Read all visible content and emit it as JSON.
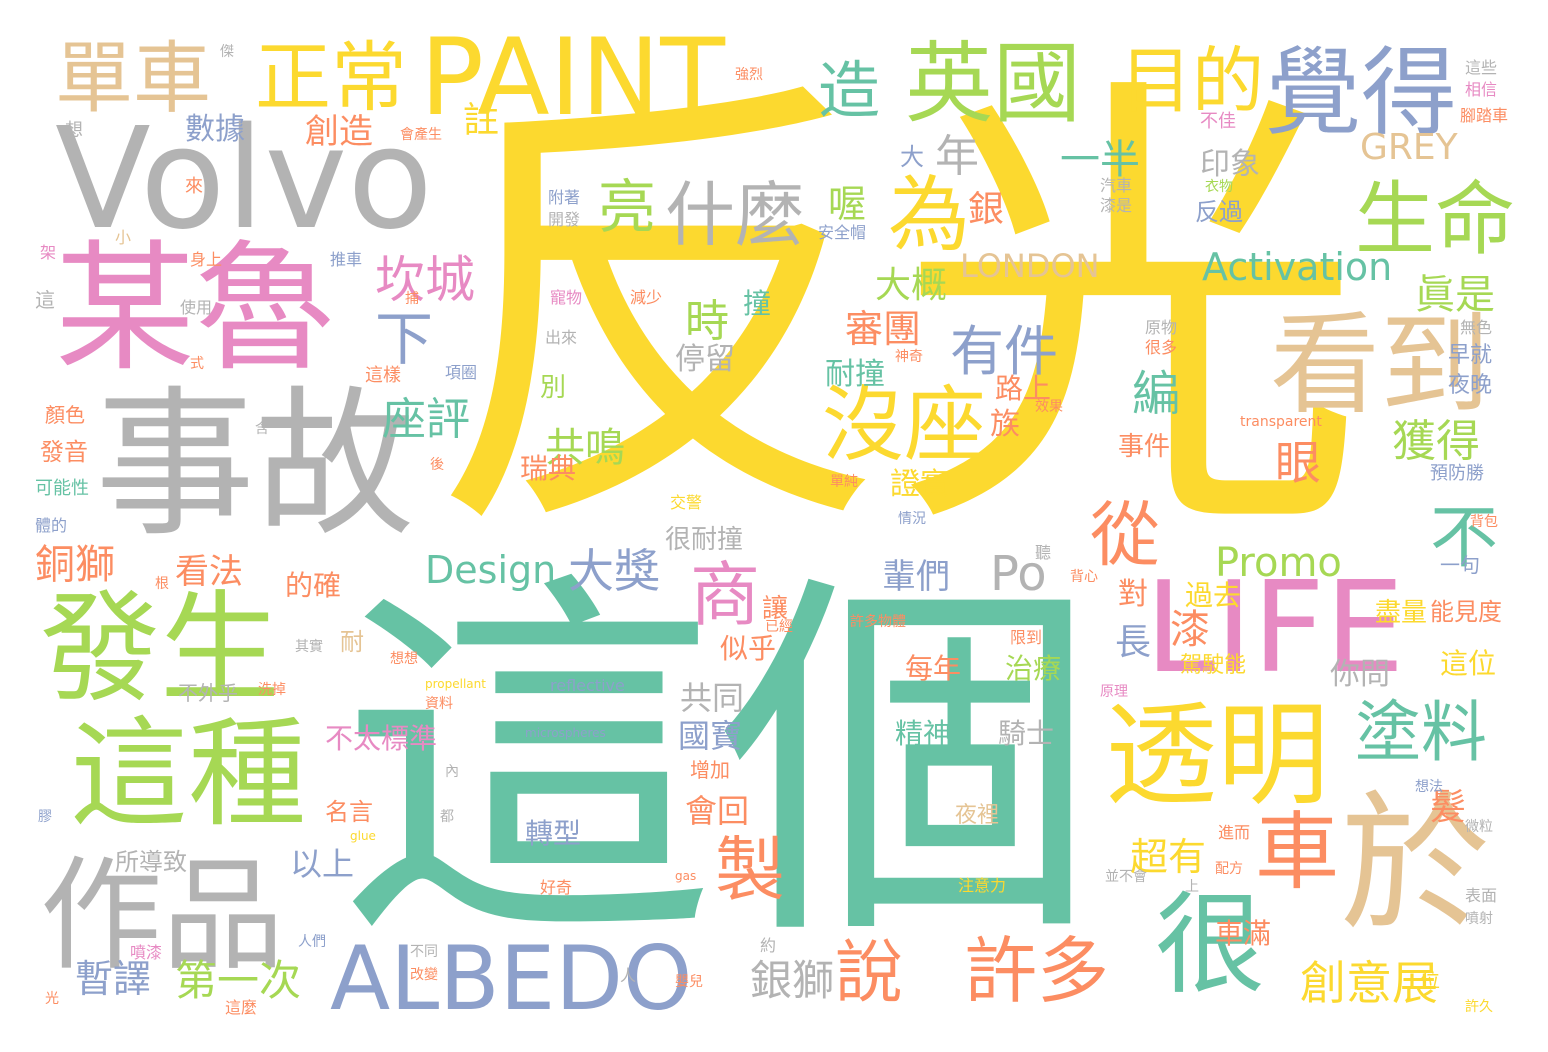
{
  "colors": {
    "yellow": "#fcd92f",
    "teal": "#66c2a4",
    "green": "#a6d854",
    "pink": "#e78ac3",
    "gray": "#b3b3b3",
    "tan": "#e5c494",
    "orange": "#fc8d62",
    "blue": "#8da0cb"
  },
  "words": {
    "w1": "反光",
    "w2": "這個",
    "w3": "Volvo",
    "w4": "某魯",
    "w5": "事故",
    "w6": "PAINT",
    "w7": "發生",
    "w8": "這種",
    "w9": "作品",
    "w10": "ALBEDO",
    "w11": "LIFE",
    "w12": "於",
    "w13": "透明",
    "w14": "看到",
    "w15": "覺得",
    "w16": "英國",
    "w17": "單車",
    "w18": "正常",
    "w19": "目的",
    "w20": "造",
    "w21": "生命",
    "w22": "什麼",
    "w23": "為",
    "w24": "沒座",
    "w25": "很",
    "w26": "許多",
    "w27": "車",
    "w28": "塗料",
    "w29": "從",
    "w30": "不",
    "w31": "商",
    "w32": "製",
    "w33": "說",
    "w34": "坎城",
    "w35": "下",
    "w36": "亮",
    "w37": "有件",
    "w38": "Activation",
    "w39": "Promo",
    "w40": "Design",
    "w41": "大獎",
    "w42": "創意展",
    "w43": "第一次",
    "w44": "暫譯",
    "w45": "銀獅",
    "w46": "LONDON",
    "w47": "GREY",
    "w48": "一半",
    "w49": "年",
    "w50": "大",
    "w51": "數據",
    "w52": "創造",
    "w53": "註",
    "w54": "座評",
    "w55": "共鳴",
    "w56": "大概",
    "w57": "審團",
    "w58": "時",
    "w59": "撞",
    "w60": "耐撞",
    "w61": "編",
    "w62": "眞是",
    "w63": "獲得",
    "w64": "眼",
    "w65": "喔",
    "w66": "銀",
    "w67": "印象",
    "w68": "反過",
    "w69": "Po",
    "w70": "銅獅",
    "w71": "看法",
    "w72": "瑞典",
    "w73": "很耐撞",
    "w74": "輩們",
    "w75": "別",
    "w76": "停留",
    "w77": "路上",
    "w78": "族",
    "w79": "證實",
    "w80": "事件",
    "w81": "的確",
    "w82": "過去",
    "w83": "漆",
    "w84": "長",
    "w85": "對",
    "w86": "似乎",
    "w87": "每年",
    "w88": "治療",
    "w89": "共同",
    "w90": "精神",
    "w91": "騎士",
    "w92": "國寶",
    "w93": "會回",
    "w94": "以上",
    "w95": "轉型",
    "w96": "超有",
    "w97": "車滿",
    "w98": "不太標準",
    "w99": "名言",
    "w100": "所導致",
    "w101": "你問",
    "w102": "這位",
    "w103": "能見度",
    "w104": "盡量",
    "w105": "髮",
    "w106": "一句",
    "w107": "駕駛能",
    "w108": "夜裡",
    "w109": "讓",
    "w110": "不外乎",
    "w111": "增加",
    "w112": "發音",
    "w113": "可能性",
    "w114": "顏色",
    "w115": "早就",
    "w116": "夜晚",
    "w117": "無色",
    "w118": "這些",
    "w119": "相信",
    "w120": "腳踏車",
    "w121": "不佳",
    "w122": "汽車",
    "w123": "漆是",
    "w124": "衣物",
    "w125": "安全帽",
    "w126": "附著",
    "w127": "開發",
    "w128": "身上",
    "w129": "推車",
    "w130": "使用",
    "w131": "減少",
    "w132": "出來",
    "w133": "寵物",
    "w134": "原物",
    "w135": "很多",
    "w136": "神奇",
    "w137": "項圈",
    "w138": "這樣",
    "w139": "效果",
    "w140": "transparent",
    "w141": "預防勝",
    "w142": "背包",
    "w143": "背心",
    "w144": "許多物體",
    "w145": "單純",
    "w146": "情況",
    "w147": "交警",
    "w148": "已經",
    "w149": "限到",
    "w150": "reflective",
    "w151": "microspheres",
    "w152": "propellant",
    "w153": "資料",
    "w154": "洗掉",
    "w155": "想想",
    "w156": "其實",
    "w157": "原理",
    "w158": "配方",
    "w159": "進而",
    "w160": "想法",
    "w161": "注意力",
    "w162": "並不會",
    "w163": "表面",
    "w164": "噴射",
    "w165": "許久",
    "w166": "位",
    "w167": "約",
    "w168": "嬰兒",
    "w169": "不同",
    "w170": "改變",
    "w171": "人們",
    "w172": "這麼",
    "w173": "噴漆",
    "w174": "好奇",
    "w175": "gas",
    "w176": "glue",
    "w177": "都",
    "w178": "內",
    "w179": "上",
    "w180": "根",
    "w181": "小",
    "w182": "來",
    "w183": "想",
    "w184": "傑",
    "w185": "強烈",
    "w186": "會產生",
    "w187": "架",
    "w188": "這",
    "w189": "捕",
    "w190": "式",
    "w191": "含",
    "w192": "後",
    "w193": "體的",
    "w194": "膠",
    "w195": "光",
    "w196": "人",
    "w197": "聽",
    "w198": "耐",
    "w199": "微粒"
  }
}
